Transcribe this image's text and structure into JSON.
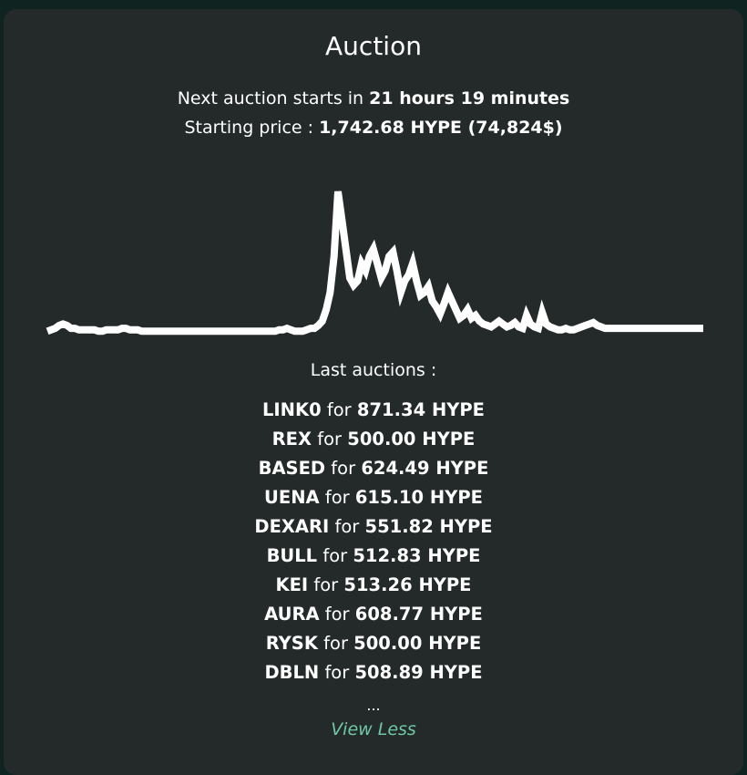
{
  "title": "Auction",
  "next_auction": {
    "prefix": "Next auction starts in",
    "time": "21 hours 19 minutes"
  },
  "starting_price": {
    "label": "Starting price :",
    "value": "1,742.68 HYPE (74,824$)"
  },
  "chart_data": {
    "type": "line",
    "color": "#ffffff",
    "values": [
      3,
      4,
      5,
      7,
      8,
      7,
      5,
      5,
      4,
      4,
      4,
      4,
      4,
      3,
      3,
      4,
      4,
      4,
      4,
      5,
      5,
      4,
      4,
      4,
      3,
      3,
      3,
      3,
      3,
      3,
      3,
      3,
      3,
      3,
      3,
      3,
      3,
      3,
      3,
      3,
      3,
      3,
      3,
      3,
      3,
      3,
      3,
      3,
      3,
      3,
      3,
      3,
      3,
      3,
      3,
      3,
      3,
      3,
      3,
      4,
      4,
      5,
      4,
      3,
      3,
      3,
      4,
      5,
      5,
      7,
      10,
      18,
      30,
      55,
      100,
      80,
      60,
      40,
      35,
      38,
      50,
      45,
      55,
      60,
      50,
      40,
      45,
      55,
      58,
      45,
      30,
      38,
      42,
      50,
      38,
      28,
      30,
      34,
      24,
      20,
      15,
      22,
      30,
      24,
      18,
      12,
      14,
      18,
      12,
      14,
      10,
      8,
      7,
      6,
      8,
      10,
      8,
      6,
      7,
      9,
      6,
      5,
      14,
      8,
      6,
      5,
      16,
      8,
      6,
      5,
      4,
      4,
      5,
      4,
      4,
      5,
      6,
      7,
      8,
      9,
      7,
      6,
      5,
      5,
      5,
      5,
      5,
      5,
      5,
      5,
      5,
      5,
      5,
      5,
      5,
      5,
      5,
      5,
      5,
      5,
      5,
      5,
      5,
      5,
      5,
      5,
      5,
      5
    ]
  },
  "last_auctions_title": "Last auctions :",
  "auctions": [
    {
      "token": "LINK0",
      "sep": "for",
      "amount": "871.34 HYPE"
    },
    {
      "token": "REX",
      "sep": "for",
      "amount": "500.00 HYPE"
    },
    {
      "token": "BASED",
      "sep": "for",
      "amount": "624.49 HYPE"
    },
    {
      "token": "UENA",
      "sep": "for",
      "amount": "615.10 HYPE"
    },
    {
      "token": "DEXARI",
      "sep": "for",
      "amount": "551.82 HYPE"
    },
    {
      "token": "BULL",
      "sep": "for",
      "amount": "512.83 HYPE"
    },
    {
      "token": "KEI",
      "sep": "for",
      "amount": "513.26 HYPE"
    },
    {
      "token": "AURA",
      "sep": "for",
      "amount": "608.77 HYPE"
    },
    {
      "token": "RYSK",
      "sep": "for",
      "amount": "500.00 HYPE"
    },
    {
      "token": "DBLN",
      "sep": "for",
      "amount": "508.89 HYPE"
    }
  ],
  "ellipsis": "...",
  "view_less_label": "View Less"
}
